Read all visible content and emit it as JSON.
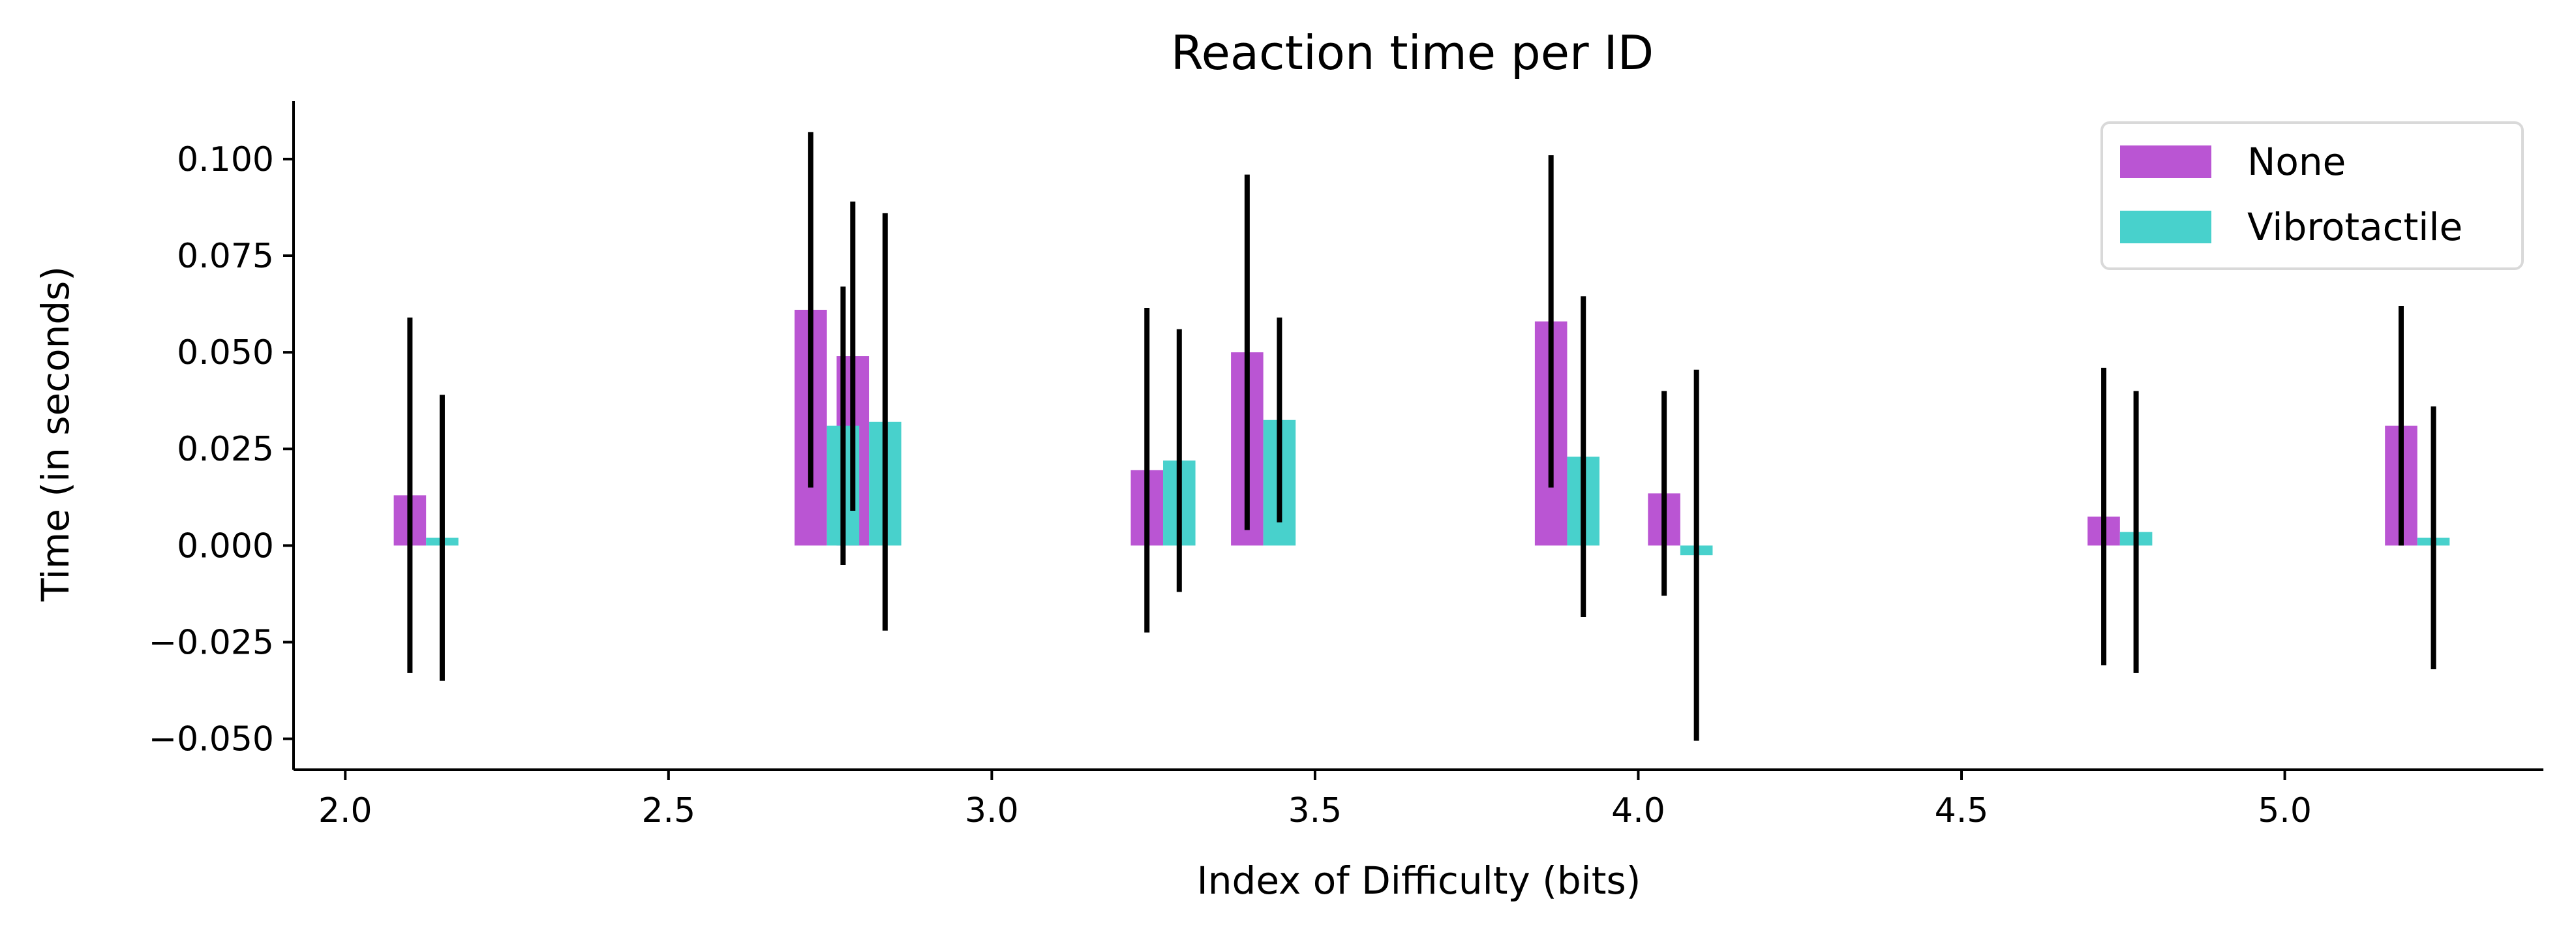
{
  "chart_data": {
    "type": "bar",
    "title": "Reaction time per ID",
    "xlabel": "Index of Difficulty (bits)",
    "ylabel": "Time (in seconds)",
    "xlim": [
      1.92,
      5.4
    ],
    "ylim": [
      -0.058,
      0.115
    ],
    "xticks": [
      2.0,
      2.5,
      3.0,
      3.5,
      4.0,
      4.5,
      5.0
    ],
    "xtick_labels": [
      "2.0",
      "2.5",
      "3.0",
      "3.5",
      "4.0",
      "4.5",
      "5.0"
    ],
    "yticks": [
      -0.05,
      -0.025,
      0.0,
      0.025,
      0.05,
      0.075,
      0.1
    ],
    "ytick_labels": [
      "−0.050",
      "−0.025",
      "0.000",
      "0.025",
      "0.050",
      "0.075",
      "0.100"
    ],
    "bar_width": 0.05,
    "grid": false,
    "legend_position": "top-right",
    "series": [
      {
        "name": "None",
        "color": "#BA55D3",
        "points": [
          {
            "x": 2.1,
            "y": 0.013,
            "err": 0.046
          },
          {
            "x": 2.72,
            "y": 0.061,
            "err": 0.046
          },
          {
            "x": 2.785,
            "y": 0.049,
            "err": 0.04
          },
          {
            "x": 3.24,
            "y": 0.0195,
            "err": 0.042
          },
          {
            "x": 3.395,
            "y": 0.05,
            "err": 0.046
          },
          {
            "x": 3.865,
            "y": 0.058,
            "err": 0.043
          },
          {
            "x": 4.04,
            "y": 0.0135,
            "err": 0.0265
          },
          {
            "x": 4.72,
            "y": 0.0075,
            "err": 0.0385
          },
          {
            "x": 5.18,
            "y": 0.031,
            "err": 0.031
          }
        ]
      },
      {
        "name": "Vibrotactile",
        "color": "#48D1CC",
        "points": [
          {
            "x": 2.15,
            "y": 0.002,
            "err": 0.037
          },
          {
            "x": 2.77,
            "y": 0.031,
            "err": 0.036
          },
          {
            "x": 2.835,
            "y": 0.032,
            "err": 0.054
          },
          {
            "x": 3.29,
            "y": 0.022,
            "err": 0.034
          },
          {
            "x": 3.445,
            "y": 0.0325,
            "err": 0.0265
          },
          {
            "x": 3.915,
            "y": 0.023,
            "err": 0.0415
          },
          {
            "x": 4.09,
            "y": -0.0025,
            "err": 0.048
          },
          {
            "x": 4.77,
            "y": 0.0035,
            "err": 0.0365
          },
          {
            "x": 5.23,
            "y": 0.002,
            "err": 0.034
          }
        ]
      }
    ]
  }
}
